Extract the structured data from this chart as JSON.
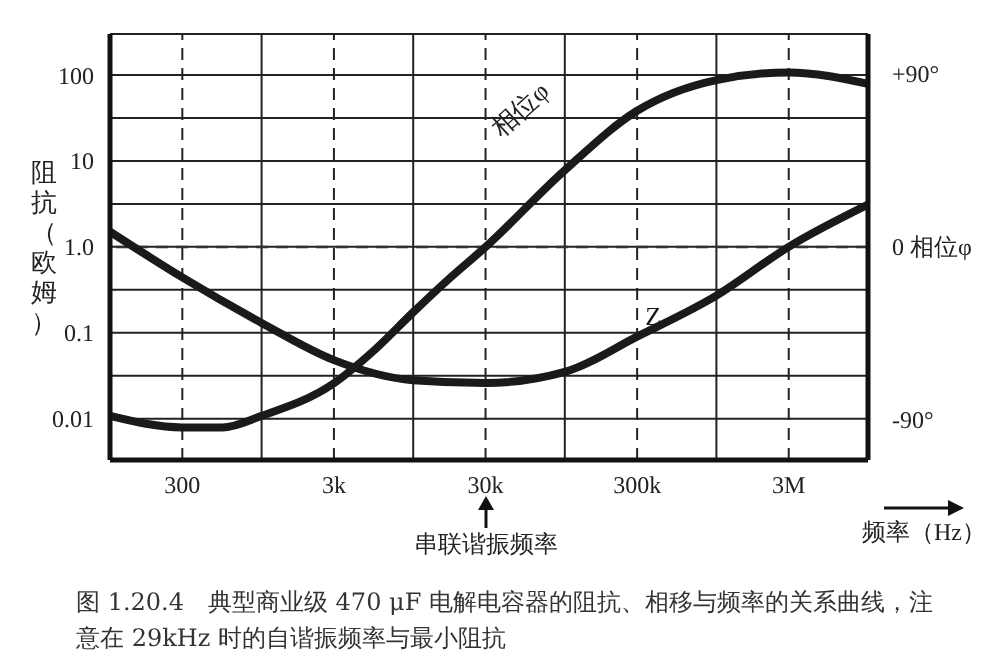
{
  "chart_data": {
    "type": "line",
    "xlabel": "频率（Hz）",
    "ylabel": "阻抗（欧姆）",
    "log": "xy",
    "xlim": [
      100,
      10000000
    ],
    "xticks": [
      {
        "value": 300,
        "label": "300"
      },
      {
        "value": 1000,
        "label": null
      },
      {
        "value": 3000,
        "label": "3k"
      },
      {
        "value": 10000,
        "label": null
      },
      {
        "value": 30000,
        "label": "30k"
      },
      {
        "value": 100000,
        "label": null
      },
      {
        "value": 300000,
        "label": "300k"
      },
      {
        "value": 1000000,
        "label": null
      },
      {
        "value": 3000000,
        "label": "3M"
      }
    ],
    "ylim": [
      0.0033,
      300
    ],
    "yticks": [
      {
        "value": 0.01,
        "label": "0.01"
      },
      {
        "value": 0.0316,
        "label": null
      },
      {
        "value": 0.1,
        "label": "0.1"
      },
      {
        "value": 0.316,
        "label": null
      },
      {
        "value": 1,
        "label": "1.0"
      },
      {
        "value": 3.16,
        "label": null
      },
      {
        "value": 10,
        "label": "10"
      },
      {
        "value": 31.6,
        "label": null
      },
      {
        "value": 100,
        "label": "100"
      }
    ],
    "y2lim": [
      -111,
      111
    ],
    "y2ticks": [
      {
        "value": 90,
        "label": "+90°"
      },
      {
        "value": 0,
        "label": "0 相位φ"
      },
      {
        "value": -90,
        "label": "-90°"
      }
    ],
    "grid": true,
    "marker": "none",
    "line_style": "solid",
    "ref_lines": [
      {
        "axis": "y2",
        "value": 0,
        "label": null,
        "line_style": "dashed",
        "color": "#333333"
      }
    ],
    "series": [
      {
        "name": "Z",
        "color": "#1a1a1a",
        "x": [
          100,
          300,
          1000,
          3000,
          10000,
          30000,
          100000,
          300000,
          1000000,
          3000000,
          10000000
        ],
        "values": [
          1.5,
          0.44,
          0.13,
          0.048,
          0.028,
          0.026,
          0.035,
          0.09,
          0.27,
          1.0,
          3.1
        ]
      },
      {
        "name": "相位φ",
        "color": "#1a1a1a",
        "axis": "y2",
        "x": [
          100,
          300,
          550,
          1000,
          3000,
          5500,
          10000,
          17000,
          30000,
          100000,
          300000,
          1000000,
          3000000,
          10000000
        ],
        "values": [
          -88,
          -94,
          -94,
          -88,
          -71,
          -54,
          -34,
          -17,
          0,
          40,
          71,
          87,
          91,
          85
        ]
      }
    ],
    "annotations": [
      "串联谐振频率",
      "图 1.20.4　典型商业级 470 μF 电解电容器的阻抗、相移与频率的关系曲线，注意在 29kHz 时的自谐振频率与最小阻抗"
    ]
  }
}
